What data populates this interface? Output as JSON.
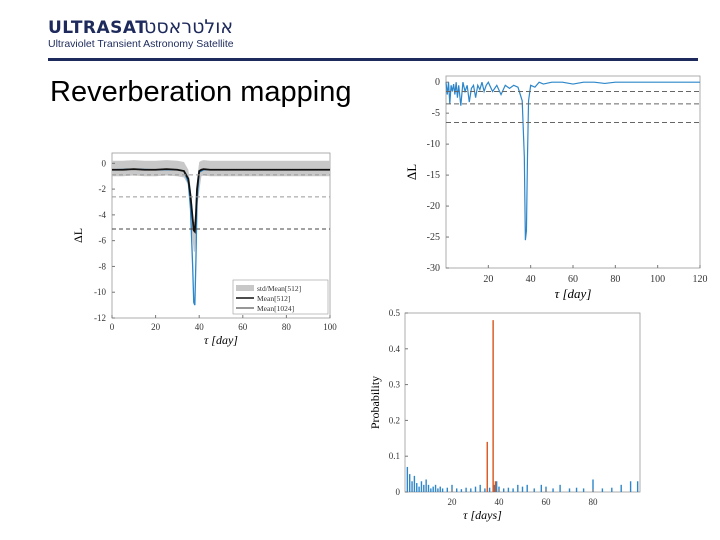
{
  "header": {
    "logo_text": "ULTRASAT",
    "logo_hebrew": "אולטראסט",
    "logo_subtitle": "Ultraviolet Transient Astronomy Satellite",
    "slide_title": "Reverberation mapping"
  },
  "colors": {
    "brand": "#1d2a5b",
    "blue": "#2d86c9",
    "orange": "#d9541a",
    "gray_band": "#c8c8c8"
  },
  "chart_data": [
    {
      "type": "line",
      "ylabel": "ΔL",
      "xlabel": "τ [day]",
      "xlim": [
        0,
        100
      ],
      "ylim": [
        -12,
        0.8
      ],
      "xticks": [
        "0",
        "20",
        "40",
        "60",
        "80",
        "100"
      ],
      "yticks": [
        "0",
        "-2",
        "-4",
        "-6",
        "-8",
        "-10",
        "-12"
      ],
      "hlines": [
        -0.9,
        -2.6,
        -5.1
      ],
      "legend": [
        "std/Mean[512]",
        "Mean[512]",
        "Mean[1024]"
      ],
      "legend_position": "bottom-right",
      "series": [
        {
          "name": "Mean[512]",
          "x": [
            0,
            5,
            10,
            15,
            20,
            25,
            30,
            33,
            35,
            36,
            37,
            37.5,
            38,
            38.5,
            39,
            40,
            41,
            42,
            45,
            50,
            55,
            60,
            65,
            70,
            75,
            80,
            85,
            90,
            95,
            100
          ],
          "y": [
            -0.5,
            -0.5,
            -0.45,
            -0.5,
            -0.5,
            -0.45,
            -0.5,
            -0.6,
            -1.2,
            -2.5,
            -4.3,
            -5.2,
            -5.3,
            -4.0,
            -2.0,
            -0.6,
            -0.5,
            -0.45,
            -0.5,
            -0.5,
            -0.5,
            -0.5,
            -0.5,
            -0.5,
            -0.5,
            -0.5,
            -0.5,
            -0.5,
            -0.5,
            -0.5
          ]
        },
        {
          "name": "Mean[1024]",
          "x": [
            0,
            10,
            20,
            30,
            33,
            35,
            36,
            37,
            37.5,
            38,
            38.5,
            39,
            40,
            42,
            50,
            60,
            70,
            80,
            90,
            100
          ],
          "y": [
            -0.5,
            -0.45,
            -0.5,
            -0.5,
            -0.6,
            -1.5,
            -3.5,
            -8.0,
            -10.8,
            -11.0,
            -7.5,
            -3.0,
            -0.7,
            -0.5,
            -0.5,
            -0.5,
            -0.5,
            -0.5,
            -0.5,
            -0.5
          ]
        }
      ]
    },
    {
      "type": "line",
      "ylabel": "ΔL",
      "xlabel": "τ [day]",
      "xlim": [
        0,
        120
      ],
      "ylim": [
        -30,
        1
      ],
      "xticks": [
        "20",
        "40",
        "60",
        "80",
        "100",
        "120"
      ],
      "yticks": [
        "0",
        "-5",
        "-10",
        "-15",
        "-20",
        "-25",
        "-30"
      ],
      "hlines": [
        -1.5,
        -3.5,
        -6.5
      ],
      "series": [
        {
          "name": "",
          "x": [
            0,
            0.6,
            1.2,
            1.8,
            2.4,
            3,
            3.6,
            4.2,
            4.8,
            5.4,
            6,
            7,
            8,
            9,
            10,
            11,
            12,
            13,
            14,
            15,
            16,
            17,
            18,
            19,
            20,
            22,
            24,
            26,
            28,
            30,
            32,
            34,
            36,
            37,
            37.5,
            38,
            38.5,
            39,
            40,
            42,
            44,
            46,
            50,
            55,
            60,
            65,
            70,
            75,
            80,
            85,
            90,
            95,
            100,
            105,
            110,
            115,
            120
          ],
          "y": [
            0,
            -2,
            0,
            -3.5,
            -0.5,
            -1.5,
            -0.3,
            -2,
            0,
            -2.5,
            -0.5,
            -3.8,
            0,
            -1.5,
            -0.5,
            -3.2,
            -1,
            -0.5,
            -2.5,
            -0.5,
            -1.2,
            0,
            -1.5,
            -0.5,
            0,
            -1.5,
            -0.5,
            -2,
            -0.5,
            -1,
            -0.5,
            -0.8,
            -3,
            -12,
            -25.5,
            -24,
            -12,
            -3,
            -0.5,
            -0.8,
            0,
            -0.3,
            0,
            0,
            -0.3,
            0,
            0,
            -0.2,
            0,
            0,
            0,
            0,
            0,
            0,
            0,
            0,
            0
          ]
        }
      ]
    },
    {
      "type": "bar",
      "ylabel": "Probability",
      "xlabel": "τ [days]",
      "xlim": [
        0,
        100
      ],
      "ylim": [
        0,
        0.5
      ],
      "xticks": [
        "20",
        "40",
        "60",
        "80"
      ],
      "yticks": [
        "0",
        "0.1",
        "0.2",
        "0.3",
        "0.4",
        "0.5"
      ],
      "series": [
        {
          "name": "",
          "color": "blue",
          "x": [
            1,
            2,
            3,
            4,
            5,
            6,
            7,
            8,
            9,
            10,
            11,
            12,
            13,
            14,
            15,
            16,
            18,
            20,
            22,
            24,
            26,
            28,
            30,
            32,
            34,
            36,
            38,
            39,
            40,
            42,
            44,
            46,
            48,
            50,
            52,
            55,
            58,
            60,
            63,
            66,
            70,
            73,
            76,
            80,
            84,
            88,
            92,
            96,
            99
          ],
          "y": [
            0.07,
            0.05,
            0.03,
            0.045,
            0.025,
            0.015,
            0.03,
            0.02,
            0.035,
            0.02,
            0.01,
            0.015,
            0.02,
            0.01,
            0.015,
            0.01,
            0.012,
            0.02,
            0.01,
            0.008,
            0.012,
            0.01,
            0.015,
            0.02,
            0.01,
            0.012,
            0.02,
            0.03,
            0.015,
            0.01,
            0.012,
            0.01,
            0.02,
            0.015,
            0.02,
            0.01,
            0.02,
            0.015,
            0.01,
            0.02,
            0.01,
            0.012,
            0.01,
            0.035,
            0.01,
            0.012,
            0.02,
            0.03,
            0.03
          ]
        },
        {
          "name": "",
          "color": "orange",
          "x": [
            35,
            37.5,
            38.5
          ],
          "y": [
            0.14,
            0.48,
            0.03
          ]
        }
      ]
    }
  ]
}
